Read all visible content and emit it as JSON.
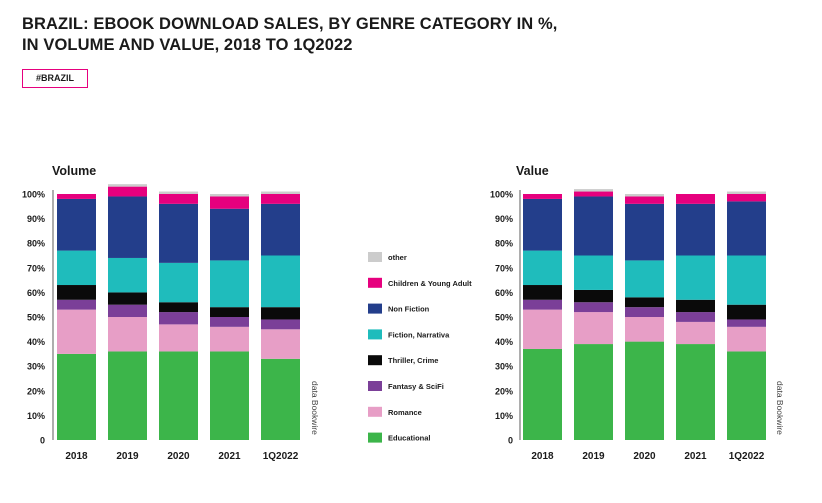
{
  "header": {
    "title_line1": "BRAZIL: EBOOK DOWNLOAD SALES, BY GENRE CATEGORY IN %,",
    "title_line2": "IN VOLUME AND VALUE, 2018 TO 1Q2022",
    "tag": "#BRAZIL"
  },
  "source_note": "data Bookwire",
  "colors": {
    "other": "#cccccc",
    "children_young_adult": "#e6007e",
    "non_fiction": "#233e8b",
    "fiction_narrativa": "#1fbcbc",
    "thriller_crime": "#0a0a0a",
    "fantasy_scifi": "#7b3f98",
    "romance": "#e79ec6",
    "educational": "#3cb54a"
  },
  "chart_data": [
    {
      "type": "bar",
      "stacked": true,
      "title": "Volume",
      "categories": [
        "2018",
        "2019",
        "2020",
        "2021",
        "1Q2022"
      ],
      "y_ticks": [
        "0",
        "10%",
        "20%",
        "30%",
        "40%",
        "50%",
        "60%",
        "70%",
        "80%",
        "90%",
        "100%"
      ],
      "ylim": [
        0,
        100
      ],
      "series": [
        {
          "name": "Educational",
          "color": "#3cb54a",
          "values": [
            35,
            36,
            36,
            36,
            33
          ]
        },
        {
          "name": "Romance",
          "color": "#e79ec6",
          "values": [
            18,
            14,
            11,
            10,
            12
          ]
        },
        {
          "name": "Fantasy & SciFi",
          "color": "#7b3f98",
          "values": [
            4,
            5,
            5,
            4,
            4
          ]
        },
        {
          "name": "Thriller, Crime",
          "color": "#0a0a0a",
          "values": [
            6,
            5,
            4,
            4,
            5
          ]
        },
        {
          "name": "Fiction, Narrativa",
          "color": "#1fbcbc",
          "values": [
            14,
            14,
            16,
            19,
            21
          ]
        },
        {
          "name": "Non Fiction",
          "color": "#233e8b",
          "values": [
            21,
            25,
            24,
            21,
            21
          ]
        },
        {
          "name": "Children & Young Adult",
          "color": "#e6007e",
          "values": [
            2,
            4,
            4,
            5,
            4
          ]
        },
        {
          "name": "other",
          "color": "#cccccc",
          "values": [
            0,
            1,
            1,
            1,
            1
          ]
        }
      ]
    },
    {
      "type": "bar",
      "stacked": true,
      "title": "Value",
      "categories": [
        "2018",
        "2019",
        "2020",
        "2021",
        "1Q2022"
      ],
      "y_ticks": [
        "0",
        "10%",
        "20%",
        "30%",
        "40%",
        "50%",
        "60%",
        "70%",
        "80%",
        "90%",
        "100%"
      ],
      "ylim": [
        0,
        100
      ],
      "series": [
        {
          "name": "Educational",
          "color": "#3cb54a",
          "values": [
            37,
            39,
            40,
            39,
            36
          ]
        },
        {
          "name": "Romance",
          "color": "#e79ec6",
          "values": [
            16,
            13,
            10,
            9,
            10
          ]
        },
        {
          "name": "Fantasy & SciFi",
          "color": "#7b3f98",
          "values": [
            4,
            4,
            4,
            4,
            3
          ]
        },
        {
          "name": "Thriller, Crime",
          "color": "#0a0a0a",
          "values": [
            6,
            5,
            4,
            5,
            6
          ]
        },
        {
          "name": "Fiction, Narrativa",
          "color": "#1fbcbc",
          "values": [
            14,
            14,
            15,
            18,
            20
          ]
        },
        {
          "name": "Non Fiction",
          "color": "#233e8b",
          "values": [
            21,
            24,
            23,
            21,
            22
          ]
        },
        {
          "name": "Children & Young Adult",
          "color": "#e6007e",
          "values": [
            2,
            2,
            3,
            4,
            3
          ]
        },
        {
          "name": "other",
          "color": "#cccccc",
          "values": [
            0,
            1,
            1,
            0,
            1
          ]
        }
      ]
    }
  ],
  "legend": {
    "placement": "center",
    "items": [
      {
        "label": "other",
        "color": "#cccccc"
      },
      {
        "label": "Children & Young Adult",
        "color": "#e6007e"
      },
      {
        "label": "Non Fiction",
        "color": "#233e8b"
      },
      {
        "label": "Fiction, Narrativa",
        "color": "#1fbcbc"
      },
      {
        "label": "Thriller, Crime",
        "color": "#0a0a0a"
      },
      {
        "label": "Fantasy & SciFi",
        "color": "#7b3f98"
      },
      {
        "label": "Romance",
        "color": "#e79ec6"
      },
      {
        "label": "Educational",
        "color": "#3cb54a"
      }
    ]
  }
}
